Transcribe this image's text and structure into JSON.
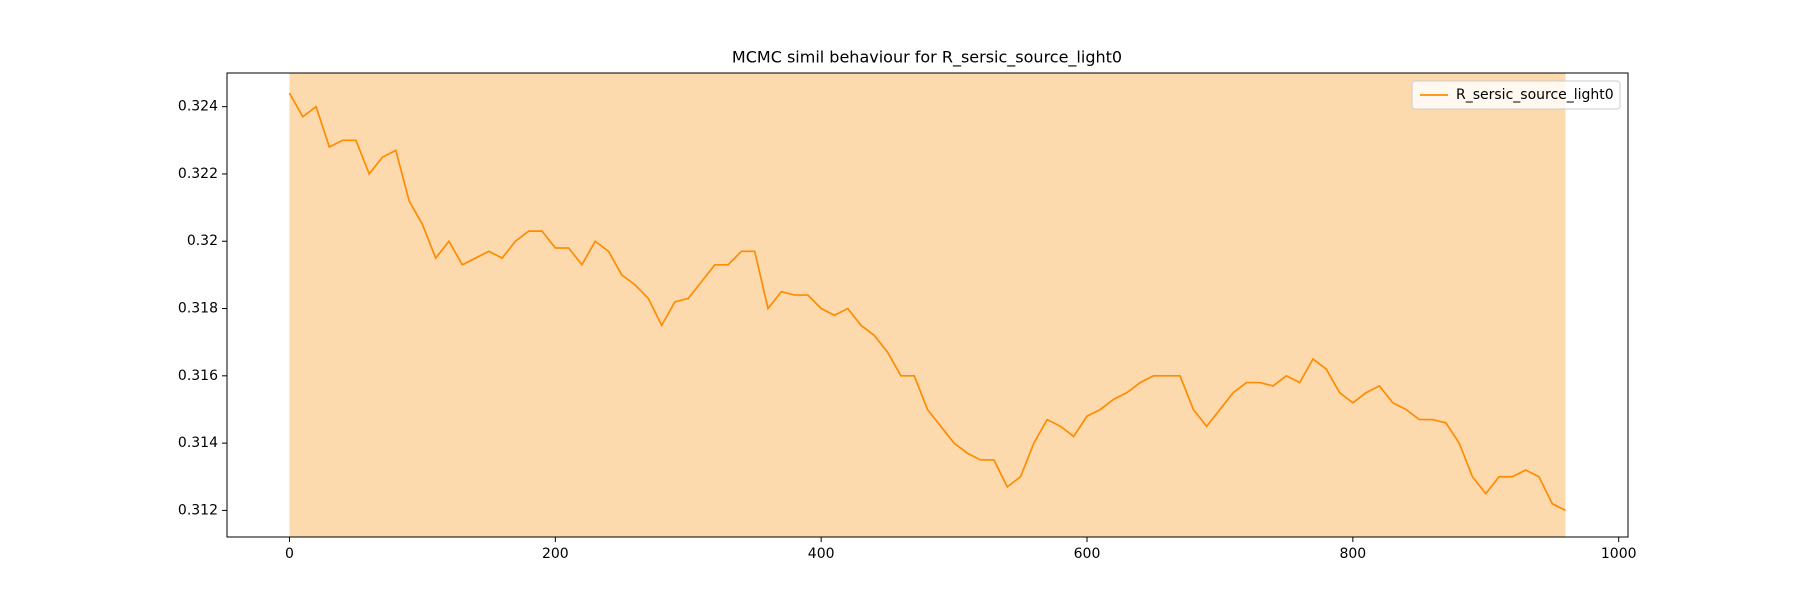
{
  "chart_data": {
    "type": "line",
    "title": "MCMC simil behaviour for R_sersic_source_light0",
    "x": [
      0,
      10,
      20,
      30,
      40,
      50,
      60,
      70,
      80,
      90,
      100,
      110,
      120,
      130,
      140,
      150,
      160,
      170,
      180,
      190,
      200,
      210,
      220,
      230,
      240,
      250,
      260,
      270,
      280,
      290,
      300,
      310,
      320,
      330,
      340,
      350,
      360,
      370,
      380,
      390,
      400,
      410,
      420,
      430,
      440,
      450,
      460,
      470,
      480,
      490,
      500,
      510,
      520,
      530,
      540,
      550,
      560,
      570,
      580,
      590,
      600,
      610,
      620,
      630,
      640,
      650,
      660,
      670,
      680,
      690,
      700,
      710,
      720,
      730,
      740,
      750,
      760,
      770,
      780,
      790,
      800,
      810,
      820,
      830,
      840,
      850,
      860,
      870,
      880,
      890,
      900,
      910,
      920,
      930,
      940,
      950,
      960
    ],
    "series": [
      {
        "name": "R_sersic_source_light0",
        "color": "#ff8c00",
        "values": [
          0.3244,
          0.3237,
          0.324,
          0.3228,
          0.323,
          0.323,
          0.322,
          0.3225,
          0.3227,
          0.3212,
          0.3205,
          0.3195,
          0.32,
          0.3193,
          0.3195,
          0.3197,
          0.3195,
          0.32,
          0.3203,
          0.3203,
          0.3198,
          0.3198,
          0.3193,
          0.32,
          0.3197,
          0.319,
          0.3187,
          0.3183,
          0.3175,
          0.3182,
          0.3183,
          0.3188,
          0.3193,
          0.3193,
          0.3197,
          0.3197,
          0.318,
          0.3185,
          0.3184,
          0.3184,
          0.318,
          0.3178,
          0.318,
          0.3175,
          0.3172,
          0.3167,
          0.316,
          0.316,
          0.315,
          0.3145,
          0.314,
          0.3137,
          0.3135,
          0.3135,
          0.3127,
          0.313,
          0.314,
          0.3147,
          0.3145,
          0.3142,
          0.3148,
          0.315,
          0.3153,
          0.3155,
          0.3158,
          0.316,
          0.316,
          0.316,
          0.315,
          0.3145,
          0.315,
          0.3155,
          0.3158,
          0.3158,
          0.3157,
          0.316,
          0.3158,
          0.3165,
          0.3162,
          0.3155,
          0.3152,
          0.3155,
          0.3157,
          0.3152,
          0.315,
          0.3147,
          0.3147,
          0.3146,
          0.314,
          0.313,
          0.3125,
          0.313,
          0.313,
          0.3132,
          0.313,
          0.3122,
          0.312
        ]
      }
    ],
    "span": [
      0,
      960
    ],
    "span_color": "#fdd9ae",
    "xlim": [
      -47,
      1007
    ],
    "xticks": [
      0,
      200,
      400,
      600,
      800,
      1000
    ],
    "ylim": [
      0.31121,
      0.325
    ],
    "yticks": [
      0.312,
      0.314,
      0.316,
      0.318,
      0.32,
      0.322,
      0.324
    ],
    "grid": false,
    "legend": "upper right"
  }
}
